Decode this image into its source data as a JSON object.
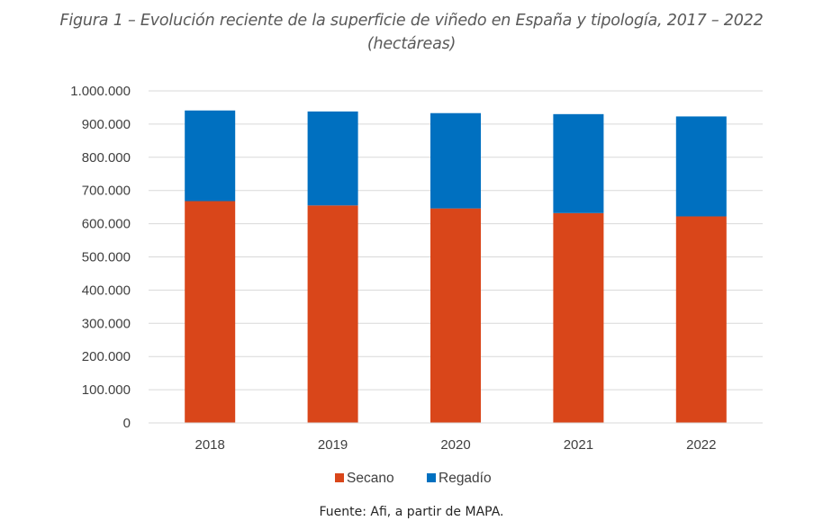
{
  "figure": {
    "title_line1": "Figura 1 – Evolución reciente de la superficie de viñedo en España y tipología, 2017 – 2022",
    "title_line2": "(hectáreas)",
    "source": "Fuente: Afi, a partir de MAPA."
  },
  "chart_data": {
    "type": "bar",
    "stacked": true,
    "title": "Figura 1 – Evolución reciente de la superficie de viñedo en España y tipología, 2017 – 2022 (hectáreas)",
    "xlabel": "",
    "ylabel": "",
    "categories": [
      "2018",
      "2019",
      "2020",
      "2021",
      "2022"
    ],
    "series": [
      {
        "name": "Secano",
        "color": "#D9461A",
        "values": [
          668000,
          655000,
          646000,
          632000,
          622000
        ]
      },
      {
        "name": "Regadío",
        "color": "#0070C0",
        "values": [
          273000,
          283000,
          287000,
          298000,
          301000
        ]
      }
    ],
    "ylim": [
      0,
      1000000
    ],
    "yticks": [
      0,
      100000,
      200000,
      300000,
      400000,
      500000,
      600000,
      700000,
      800000,
      900000,
      1000000
    ],
    "ytick_labels": [
      "0",
      "100.000",
      "200.000",
      "300.000",
      "400.000",
      "500.000",
      "600.000",
      "700.000",
      "800.000",
      "900.000",
      "1.000.000"
    ],
    "grid": true,
    "legend_position": "bottom"
  }
}
